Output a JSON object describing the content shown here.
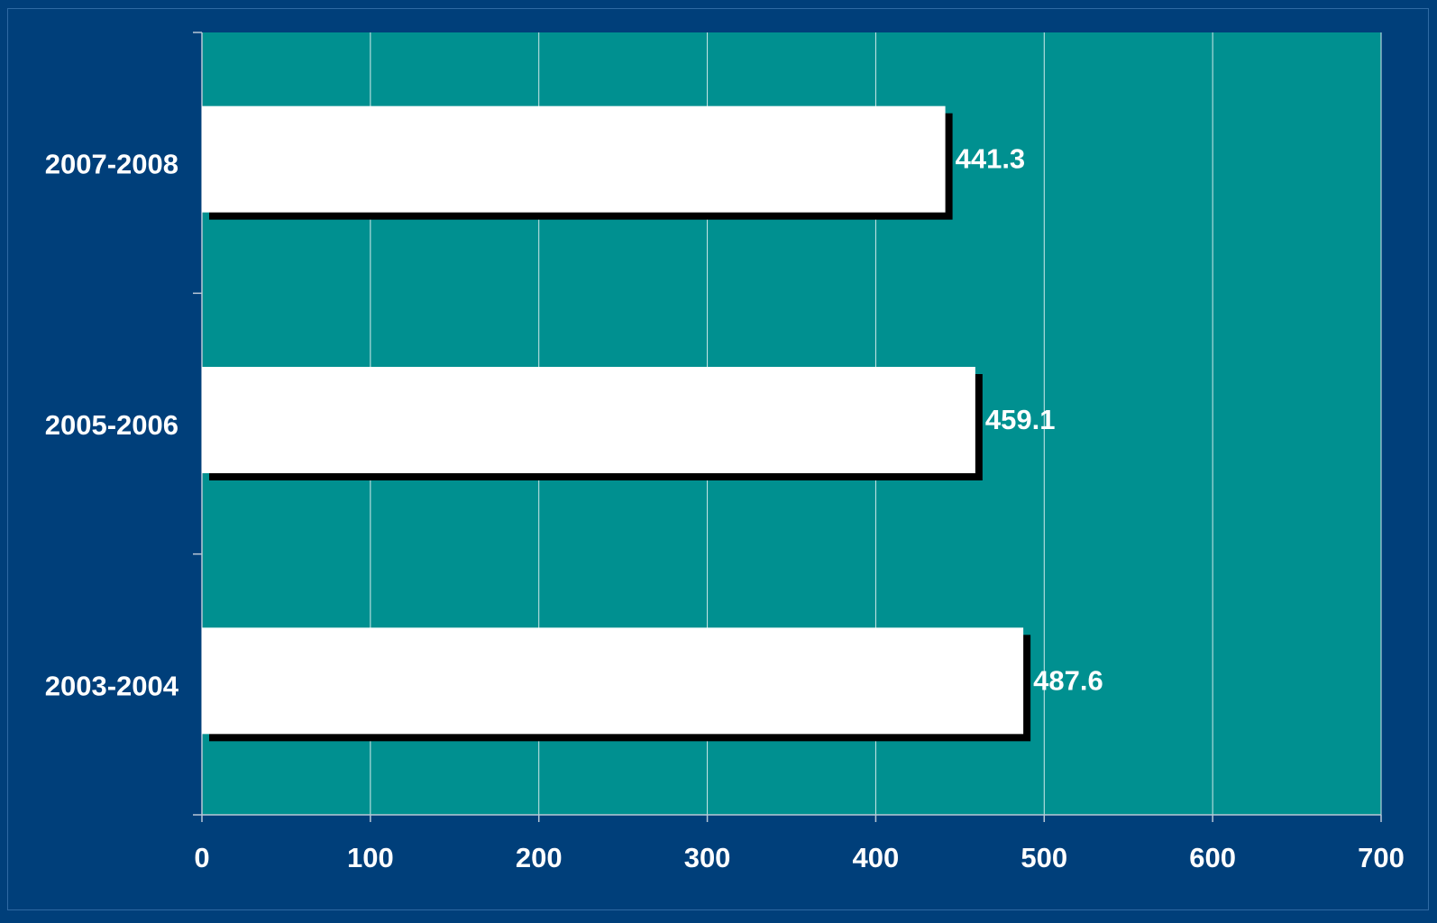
{
  "chart_data": {
    "type": "bar",
    "orientation": "horizontal",
    "title": "",
    "xlabel": "",
    "ylabel": "",
    "categories": [
      "2007-2008",
      "2005-2006",
      "2003-2004"
    ],
    "values": [
      441.3,
      459.1,
      487.6
    ],
    "value_labels": [
      "441.3",
      "459.1",
      "487.6"
    ],
    "xlim": [
      0,
      700
    ],
    "x_ticks": [
      0,
      100,
      200,
      300,
      400,
      500,
      600,
      700
    ],
    "x_tick_labels": [
      "0",
      "100",
      "200",
      "300",
      "400",
      "500",
      "600",
      "700"
    ],
    "grid": "vertical",
    "legend": "none",
    "colors": {
      "page_background": "#003f7a",
      "plot_background": "#009090",
      "bar_fill": "#ffffff",
      "bar_shadow": "#000000",
      "gridline": "#cfe9e9",
      "text": "#ffffff"
    }
  }
}
